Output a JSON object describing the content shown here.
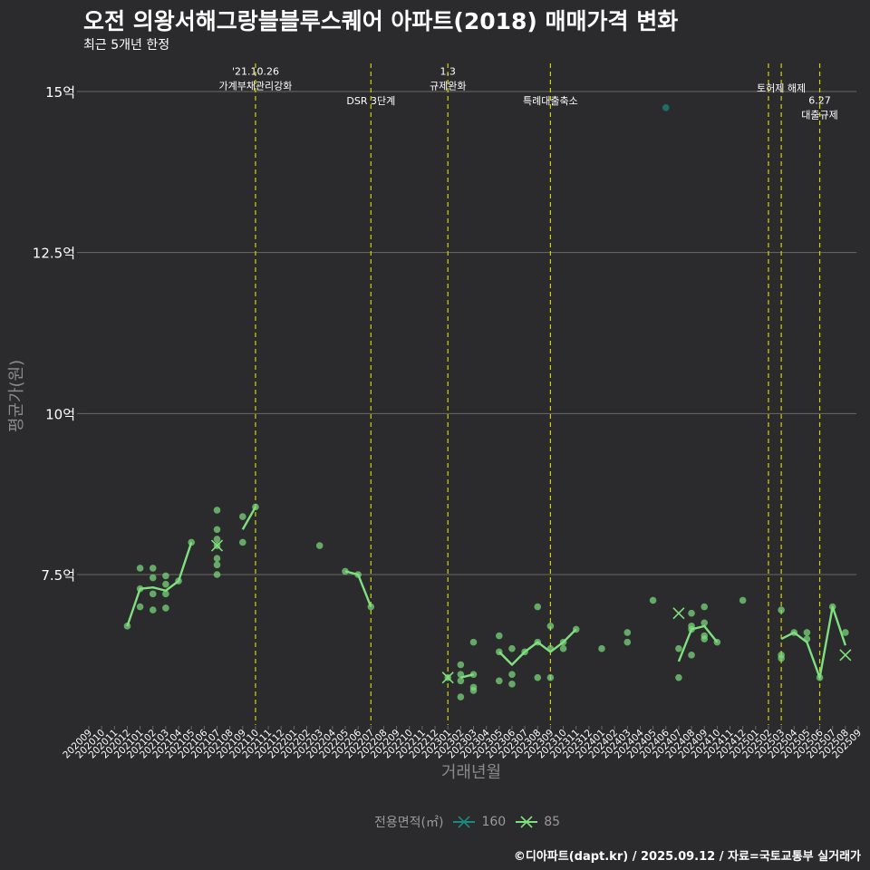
{
  "title": "오전 의왕서해그랑블블루스퀘어 아파트(2018) 매매가격 변화",
  "subtitle": "최근 5개년 한정",
  "caption": "©디아파트(dapt.kr) / 2025.09.12 / 자료=국토교통부 실거래가",
  "colors": {
    "background": "#2b2a2c",
    "grid": "#6a6a6a",
    "event_line": "#d4d400",
    "series_160": "#1a8a80",
    "series_85": "#7fe07f"
  },
  "chart_data": {
    "type": "line",
    "xlabel": "거래년월",
    "ylabel": "평균가(원)",
    "ylim": [
      5.0,
      15.5
    ],
    "yticks": [
      7.5,
      10,
      12.5,
      15
    ],
    "ytick_labels": [
      "7.5억",
      "10억",
      "12.5억",
      "15억"
    ],
    "x": [
      "202009",
      "202010",
      "202011",
      "202012",
      "202101",
      "202102",
      "202103",
      "202104",
      "202105",
      "202106",
      "202107",
      "202108",
      "202109",
      "202110",
      "202111",
      "202112",
      "202201",
      "202202",
      "202203",
      "202204",
      "202205",
      "202206",
      "202207",
      "202208",
      "202209",
      "202210",
      "202211",
      "202212",
      "202301",
      "202302",
      "202303",
      "202304",
      "202305",
      "202306",
      "202307",
      "202308",
      "202309",
      "202310",
      "202311",
      "202312",
      "202401",
      "202402",
      "202403",
      "202404",
      "202405",
      "202406",
      "202407",
      "202408",
      "202409",
      "202410",
      "202411",
      "202412",
      "202501",
      "202502",
      "202503",
      "202504",
      "202505",
      "202506",
      "202507",
      "202508",
      "202509"
    ],
    "legend_title": "전용면적(㎡)",
    "events": [
      {
        "x": "202110",
        "label": "'21.10.26\n가계부채관리강화",
        "y": 15.15
      },
      {
        "x": "202207",
        "label": "DSR 3단계",
        "y": 14.8
      },
      {
        "x": "202301",
        "label": "1.3\n규제완화",
        "y": 15.15
      },
      {
        "x": "202309",
        "label": "특례대출축소",
        "y": 14.8
      },
      {
        "x": "202502",
        "label": "",
        "y": 15.0
      },
      {
        "x": "202503",
        "label": "토허제 해제",
        "y": 15.0
      },
      {
        "x": "202506",
        "label": "6.27\n대출규제",
        "y": 14.7
      }
    ],
    "series": [
      {
        "name": "160",
        "points": [
          [
            "202406",
            14.75
          ]
        ],
        "line": [],
        "averages": []
      },
      {
        "name": "85",
        "points": [
          [
            "202012",
            6.7
          ],
          [
            "202101",
            7.0
          ],
          [
            "202101",
            7.28
          ],
          [
            "202101",
            7.6
          ],
          [
            "202102",
            6.95
          ],
          [
            "202102",
            7.2
          ],
          [
            "202102",
            7.45
          ],
          [
            "202102",
            7.6
          ],
          [
            "202103",
            6.98
          ],
          [
            "202103",
            7.2
          ],
          [
            "202103",
            7.35
          ],
          [
            "202103",
            7.48
          ],
          [
            "202104",
            7.4
          ],
          [
            "202105",
            8.0
          ],
          [
            "202107",
            7.5
          ],
          [
            "202107",
            7.65
          ],
          [
            "202107",
            7.75
          ],
          [
            "202107",
            7.95
          ],
          [
            "202107",
            8.05
          ],
          [
            "202107",
            8.2
          ],
          [
            "202107",
            8.5
          ],
          [
            "202109",
            8.0
          ],
          [
            "202109",
            8.4
          ],
          [
            "202110",
            8.55
          ],
          [
            "202203",
            7.95
          ],
          [
            "202205",
            7.55
          ],
          [
            "202206",
            7.5
          ],
          [
            "202207",
            7.0
          ],
          [
            "202301",
            5.9
          ],
          [
            "202302",
            5.6
          ],
          [
            "202302",
            5.85
          ],
          [
            "202302",
            5.95
          ],
          [
            "202302",
            6.1
          ],
          [
            "202303",
            5.7
          ],
          [
            "202303",
            5.75
          ],
          [
            "202303",
            5.95
          ],
          [
            "202303",
            6.45
          ],
          [
            "202305",
            5.85
          ],
          [
            "202305",
            6.3
          ],
          [
            "202305",
            6.55
          ],
          [
            "202306",
            5.8
          ],
          [
            "202306",
            5.95
          ],
          [
            "202306",
            6.35
          ],
          [
            "202307",
            6.3
          ],
          [
            "202308",
            5.9
          ],
          [
            "202308",
            6.45
          ],
          [
            "202308",
            7.0
          ],
          [
            "202309",
            5.9
          ],
          [
            "202309",
            6.35
          ],
          [
            "202309",
            6.7
          ],
          [
            "202310",
            6.35
          ],
          [
            "202310",
            6.45
          ],
          [
            "202311",
            6.65
          ],
          [
            "202401",
            6.35
          ],
          [
            "202403",
            6.45
          ],
          [
            "202403",
            6.6
          ],
          [
            "202405",
            7.1
          ],
          [
            "202407",
            5.9
          ],
          [
            "202407",
            6.35
          ],
          [
            "202408",
            6.25
          ],
          [
            "202408",
            6.65
          ],
          [
            "202408",
            6.7
          ],
          [
            "202408",
            6.9
          ],
          [
            "202409",
            6.5
          ],
          [
            "202409",
            6.55
          ],
          [
            "202409",
            6.75
          ],
          [
            "202409",
            7.0
          ],
          [
            "202410",
            6.45
          ],
          [
            "202412",
            7.1
          ],
          [
            "202503",
            6.2
          ],
          [
            "202503",
            6.25
          ],
          [
            "202503",
            6.95
          ],
          [
            "202504",
            6.6
          ],
          [
            "202505",
            6.5
          ],
          [
            "202505",
            6.6
          ],
          [
            "202506",
            5.9
          ],
          [
            "202507",
            7.0
          ],
          [
            "202508",
            6.6
          ]
        ],
        "line": [
          [
            [
              "202012",
              6.7
            ],
            [
              "202101",
              7.28
            ],
            [
              "202102",
              7.3
            ],
            [
              "202103",
              7.25
            ],
            [
              "202104",
              7.4
            ],
            [
              "202105",
              8.0
            ]
          ],
          [
            [
              "202109",
              8.2
            ],
            [
              "202110",
              8.55
            ]
          ],
          [
            [
              "202205",
              7.55
            ],
            [
              "202206",
              7.5
            ],
            [
              "202207",
              7.0
            ]
          ],
          [
            [
              "202302",
              5.9
            ],
            [
              "202303",
              5.95
            ]
          ],
          [
            [
              "202305",
              6.3
            ],
            [
              "202306",
              6.1
            ],
            [
              "202307",
              6.3
            ],
            [
              "202308",
              6.45
            ],
            [
              "202309",
              6.3
            ],
            [
              "202310",
              6.45
            ],
            [
              "202311",
              6.65
            ]
          ],
          [
            [
              "202407",
              6.15
            ],
            [
              "202408",
              6.65
            ],
            [
              "202409",
              6.7
            ],
            [
              "202410",
              6.45
            ]
          ],
          [
            [
              "202503",
              6.5
            ],
            [
              "202504",
              6.6
            ],
            [
              "202505",
              6.45
            ],
            [
              "202506",
              5.9
            ],
            [
              "202507",
              7.0
            ],
            [
              "202508",
              6.4
            ]
          ]
        ],
        "averages": [
          [
            "202107",
            7.95
          ],
          [
            "202301",
            5.9
          ],
          [
            "202407",
            6.9
          ],
          [
            "202508",
            6.25
          ]
        ]
      }
    ]
  }
}
